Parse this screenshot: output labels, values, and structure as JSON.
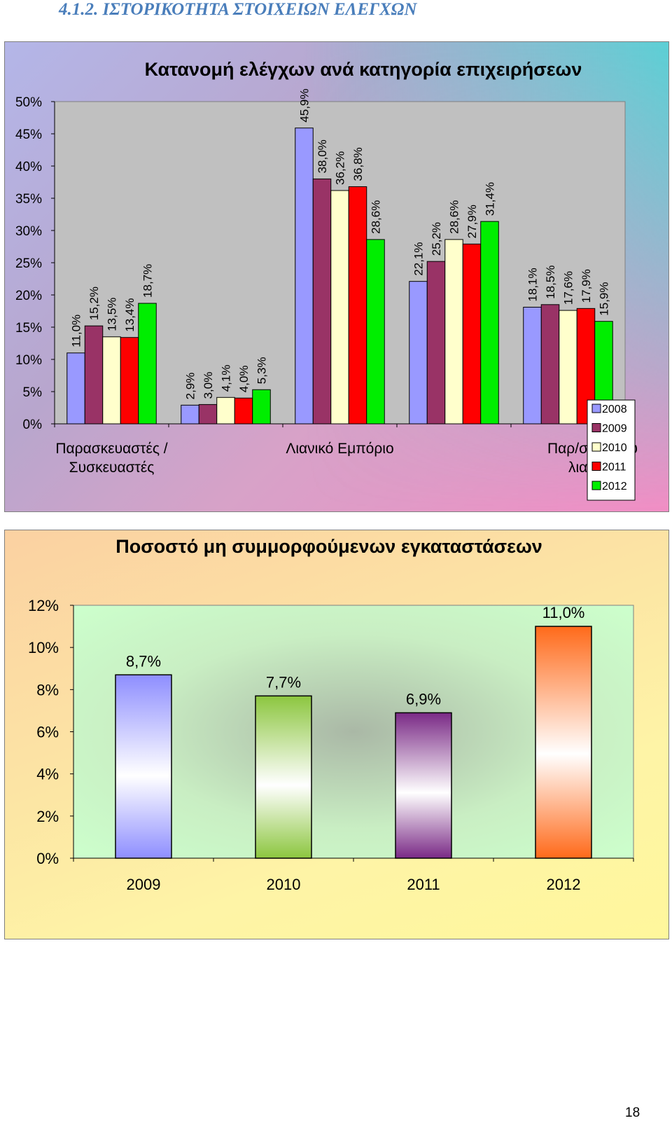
{
  "document": {
    "heading": "4.1.2.  ΙΣΤΟΡΙΚΟΤΗΤΑ ΣΤΟΙΧΕΙΩΝ ΕΛΕΓΧΩΝ",
    "page_number": "18"
  },
  "chart_data": [
    {
      "type": "bar",
      "title": "Κατανομή ελέγχων ανά κατηγορία επιχειρήσεων",
      "xlabel": "",
      "ylabel": "",
      "ylim": [
        0,
        50
      ],
      "ytick_step": 5,
      "ytick_labels": [
        "0%",
        "5%",
        "10%",
        "15%",
        "20%",
        "25%",
        "30%",
        "35%",
        "40%",
        "45%",
        "50%"
      ],
      "grid": false,
      "legend_position": "bottom-right",
      "categories": [
        "Παρασκευαστές / Συσκευαστές",
        "",
        "Λιανικό Εμπόριο",
        "",
        "Παρ/στές που … ύν λιανικώ…"
      ],
      "category_label_lines": [
        [
          "Παρασκευαστές /",
          "Συσκευαστές"
        ],
        [],
        [
          "Λιανικό Εμπόριο"
        ],
        [],
        [
          "Παρ/στές που ",
          "λιανικώ"
        ]
      ],
      "series": [
        {
          "name": "2008",
          "color": "#9999ff",
          "values": [
            11.0,
            2.9,
            45.9,
            22.1,
            18.1
          ],
          "labels": [
            "11,0%",
            "2,9%",
            "45,9%",
            "22,1%",
            "18,1%"
          ]
        },
        {
          "name": "2009",
          "color": "#993366",
          "values": [
            15.2,
            3.0,
            38.0,
            25.2,
            18.5
          ],
          "labels": [
            "15,2%",
            "3,0%",
            "38,0%",
            "25,2%",
            "18,5%"
          ]
        },
        {
          "name": "2010",
          "color": "#ffffcc",
          "values": [
            13.5,
            4.1,
            36.2,
            28.6,
            17.6
          ],
          "labels": [
            "13,5%",
            "4,1%",
            "36,2%",
            "28,6%",
            "17,6%"
          ]
        },
        {
          "name": "2011",
          "color": "#ff0000",
          "values": [
            13.4,
            4.0,
            36.8,
            27.9,
            17.9
          ],
          "labels": [
            "13,4%",
            "4,0%",
            "36,8%",
            "27,9%",
            "17,9%"
          ]
        },
        {
          "name": "2012",
          "color": "#00ee00",
          "values": [
            18.7,
            5.3,
            28.6,
            31.4,
            15.9
          ],
          "labels": [
            "18,7%",
            "5,3%",
            "28,6%",
            "31,4%",
            "15,9%"
          ]
        }
      ],
      "plot_background": "#c0c0c0"
    },
    {
      "type": "bar",
      "title": "Ποσοστό μη συμμορφούμενων εγκαταστάσεων",
      "xlabel": "",
      "ylabel": "",
      "ylim": [
        0,
        12
      ],
      "ytick_step": 2,
      "ytick_labels": [
        "0%",
        "2%",
        "4%",
        "6%",
        "8%",
        "10%",
        "12%"
      ],
      "grid": false,
      "categories": [
        "2009",
        "2010",
        "2011",
        "2012"
      ],
      "values": [
        8.7,
        7.7,
        6.9,
        11.0
      ],
      "labels": [
        "8,7%",
        "7,7%",
        "6,9%",
        "11,0%"
      ],
      "colors": [
        "#8e8eff",
        "#8cc63f",
        "#7a2a86",
        "#ff6a1a"
      ],
      "plot_background": "#ccffcc"
    }
  ]
}
